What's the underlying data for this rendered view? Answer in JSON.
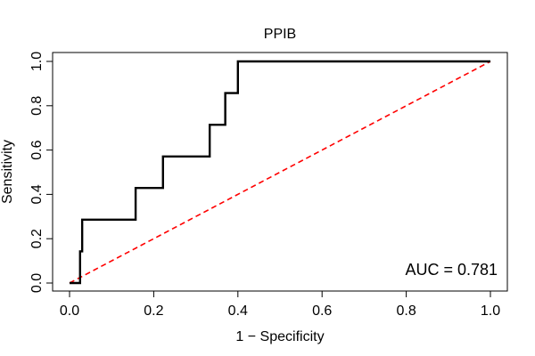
{
  "chart_data": {
    "type": "line",
    "title": "PPIB",
    "xlabel": "1 − Specificity",
    "ylabel": "Sensitivity",
    "xlim": [
      0,
      1
    ],
    "ylim": [
      0,
      1
    ],
    "grid": false,
    "x_ticks": [
      0.0,
      0.2,
      0.4,
      0.6,
      0.8,
      1.0
    ],
    "x_tick_labels": [
      "0.0",
      "0.2",
      "0.4",
      "0.6",
      "0.8",
      "1.0"
    ],
    "y_ticks": [
      0.0,
      0.2,
      0.4,
      0.6,
      0.8,
      1.0
    ],
    "y_tick_labels": [
      "0.0",
      "0.2",
      "0.4",
      "0.6",
      "0.8",
      "1.0"
    ],
    "series": [
      {
        "name": "ROC curve",
        "color": "#000000",
        "x": [
          0.0,
          0.025,
          0.025,
          0.03,
          0.03,
          0.157,
          0.157,
          0.222,
          0.222,
          0.333,
          0.333,
          0.37,
          0.37,
          0.4,
          0.4,
          1.0
        ],
        "y": [
          0.0,
          0.0,
          0.143,
          0.143,
          0.286,
          0.286,
          0.429,
          0.429,
          0.571,
          0.571,
          0.714,
          0.714,
          0.857,
          0.857,
          1.0,
          1.0
        ]
      },
      {
        "name": "chance line",
        "color": "#ff0000",
        "x": [
          0,
          1
        ],
        "y": [
          0,
          1
        ]
      }
    ],
    "annotations": [
      {
        "text": "AUC = 0.781",
        "x": 1.0,
        "y": 0.0
      }
    ]
  }
}
